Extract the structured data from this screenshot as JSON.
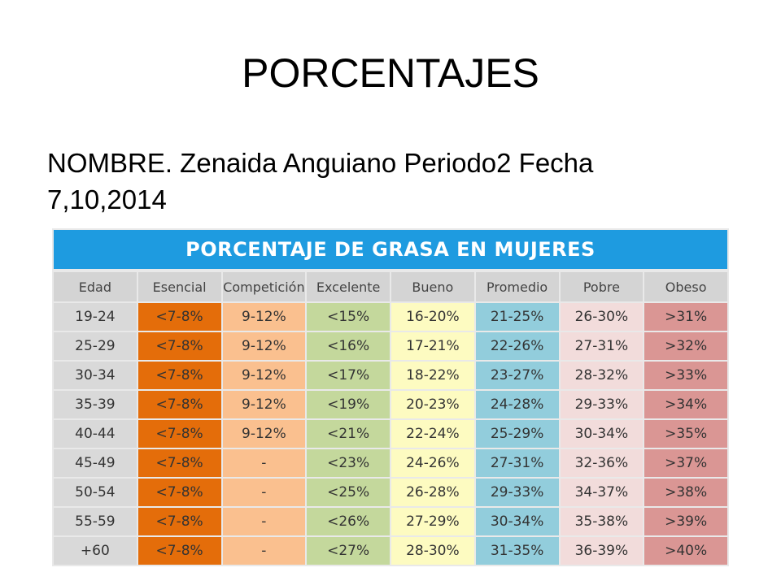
{
  "slide": {
    "title": "PORCENTAJES",
    "subtitle": "NOMBRE. Zenaida Anguiano Periodo2 Fecha 7,10,2014"
  },
  "table": {
    "title": "PORCENTAJE DE GRASA EN MUJERES",
    "headers": [
      "Edad",
      "Esencial",
      "Competición",
      "Excelente",
      "Bueno",
      "Promedio",
      "Pobre",
      "Obeso"
    ],
    "column_colors": [
      "#d9d9d9",
      "#e46d0a",
      "#fac08f",
      "#c4d89c",
      "#fdfbc1",
      "#92cddc",
      "#f2dcdb",
      "#da9694"
    ],
    "rows": [
      [
        "19-24",
        "<7-8%",
        "9-12%",
        "<15%",
        "16-20%",
        "21-25%",
        "26-30%",
        ">31%"
      ],
      [
        "25-29",
        "<7-8%",
        "9-12%",
        "<16%",
        "17-21%",
        "22-26%",
        "27-31%",
        ">32%"
      ],
      [
        "30-34",
        "<7-8%",
        "9-12%",
        "<17%",
        "18-22%",
        "23-27%",
        "28-32%",
        ">33%"
      ],
      [
        "35-39",
        "<7-8%",
        "9-12%",
        "<19%",
        "20-23%",
        "24-28%",
        "29-33%",
        ">34%"
      ],
      [
        "40-44",
        "<7-8%",
        "9-12%",
        "<21%",
        "22-24%",
        "25-29%",
        "30-34%",
        ">35%"
      ],
      [
        "45-49",
        "<7-8%",
        "-",
        "<23%",
        "24-26%",
        "27-31%",
        "32-36%",
        ">37%"
      ],
      [
        "50-54",
        "<7-8%",
        "-",
        "<25%",
        "26-28%",
        "29-33%",
        "34-37%",
        ">38%"
      ],
      [
        "55-59",
        "<7-8%",
        "-",
        "<26%",
        "27-29%",
        "30-34%",
        "35-38%",
        ">39%"
      ],
      [
        "+60",
        "<7-8%",
        "-",
        "<27%",
        "28-30%",
        "31-35%",
        "36-39%",
        ">40%"
      ]
    ]
  }
}
